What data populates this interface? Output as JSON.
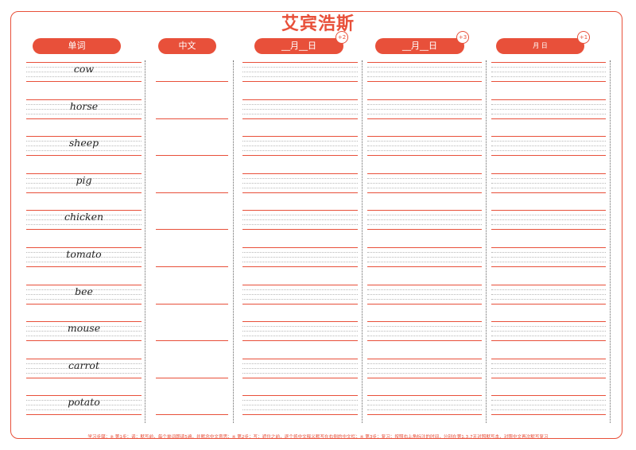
{
  "title": "艾宾浩斯",
  "headers": {
    "word": "单词",
    "chinese": "中文",
    "review1": "__月__日",
    "review2": "__月__日",
    "review3": "月  日"
  },
  "badges": {
    "review1": "+2",
    "review2": "+3",
    "review3": "+1"
  },
  "words": [
    "cow",
    "horse",
    "sheep",
    "pig",
    "chicken",
    "tomato",
    "bee",
    "mouse",
    "carrot",
    "potato"
  ],
  "footer": "学习步骤：※ 第1步：读：默写前，每个单词朗读5遍，并默念中文意思；※ 第2步：写：遮住之前，逐个将中文释义默写在右侧的中文栏；※ 第3步：复习：按照右上角标注的时间，分别在第1,3,7天对照默写本，对照中文再次默写复习",
  "colors": {
    "accent": "#e8503a",
    "dots": "#b8b8b8"
  }
}
